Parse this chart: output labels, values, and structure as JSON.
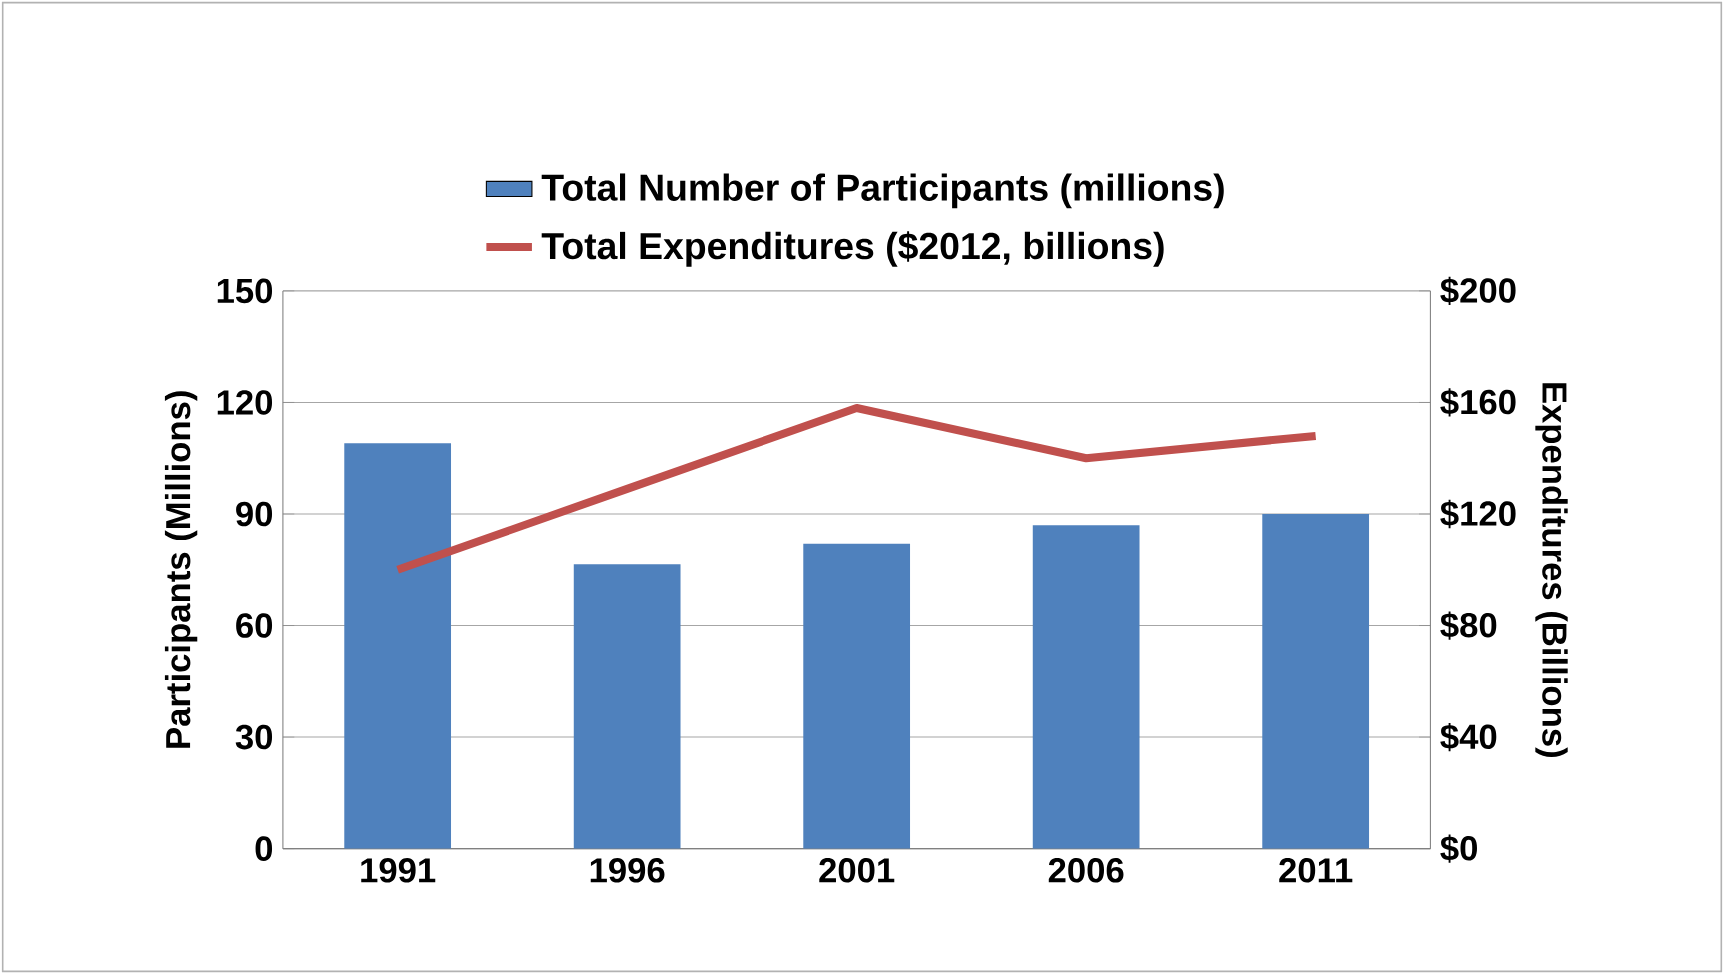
{
  "chart_data": {
    "type": "bar",
    "categories": [
      "1991",
      "1996",
      "2001",
      "2006",
      "2011"
    ],
    "series": [
      {
        "name": "Total Number of Participants (millions)",
        "color": "#4f81bd",
        "values": [
          109,
          76.5,
          82,
          87,
          90
        ]
      },
      {
        "name": "Total Expenditures ($2012, billions)",
        "type": "line",
        "axis": "y2",
        "color": "#c0504d",
        "values": [
          100,
          129,
          158,
          140,
          148
        ]
      }
    ],
    "ylabel": "Participants (Millions)",
    "y2label": "Expenditures (Billions)",
    "ylim": [
      0,
      150
    ],
    "yticks": [
      0,
      30,
      60,
      90,
      120,
      150
    ],
    "y2lim": [
      0,
      200
    ],
    "y2ticks": [
      {
        "value": 0,
        "label": "$0"
      },
      {
        "value": 40,
        "label": "$40"
      },
      {
        "value": 80,
        "label": "$80"
      },
      {
        "value": 120,
        "label": "$120"
      },
      {
        "value": 160,
        "label": "$160"
      },
      {
        "value": 200,
        "label": "$200"
      }
    ],
    "grid": "y",
    "legend": "top"
  }
}
